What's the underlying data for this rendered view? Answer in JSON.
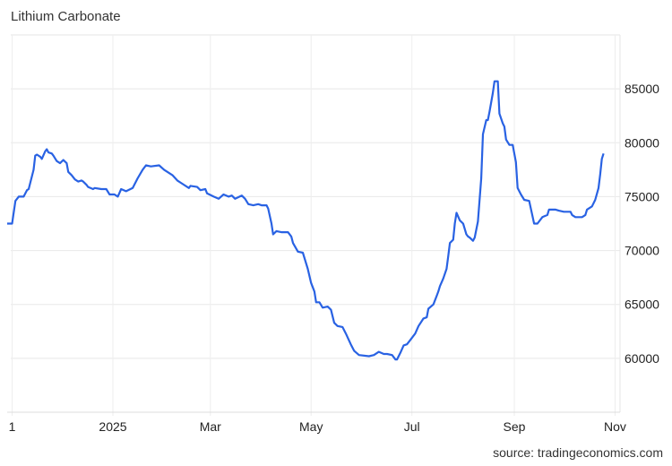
{
  "chart_data": {
    "type": "line",
    "title": "Lithium Carbonate",
    "source": "source: tradingeconomics.com",
    "xlabel": "",
    "ylabel": "",
    "xlim": [
      "2024-10-29",
      "2025-11-04"
    ],
    "ylim": [
      55000,
      90000
    ],
    "grid": true,
    "line_color": "#2962e3",
    "x_ticks": [
      {
        "date": "2024-11-01",
        "label": "1"
      },
      {
        "date": "2025-01-01",
        "label": "2025"
      },
      {
        "date": "2025-03-01",
        "label": "Mar"
      },
      {
        "date": "2025-05-01",
        "label": "May"
      },
      {
        "date": "2025-07-01",
        "label": "Jul"
      },
      {
        "date": "2025-09-01",
        "label": "Sep"
      },
      {
        "date": "2025-11-01",
        "label": "Nov"
      }
    ],
    "y_ticks": [
      {
        "value": 60000,
        "label": "60000"
      },
      {
        "value": 65000,
        "label": "65000"
      },
      {
        "value": 70000,
        "label": "70000"
      },
      {
        "value": 75000,
        "label": "75000"
      },
      {
        "value": 80000,
        "label": "80000"
      },
      {
        "value": 85000,
        "label": "85000"
      }
    ],
    "series": [
      {
        "points": [
          [
            "2024-10-29",
            72500
          ],
          [
            "2024-11-01",
            72500
          ],
          [
            "2024-11-03",
            74600
          ],
          [
            "2024-11-05",
            75000
          ],
          [
            "2024-11-08",
            75000
          ],
          [
            "2024-11-10",
            75600
          ],
          [
            "2024-11-11",
            75700
          ],
          [
            "2024-11-14",
            77500
          ],
          [
            "2024-11-15",
            78800
          ],
          [
            "2024-11-16",
            78900
          ],
          [
            "2024-11-18",
            78700
          ],
          [
            "2024-11-19",
            78500
          ],
          [
            "2024-11-21",
            79200
          ],
          [
            "2024-11-22",
            79400
          ],
          [
            "2024-11-23",
            79100
          ],
          [
            "2024-11-25",
            79000
          ],
          [
            "2024-11-26",
            78800
          ],
          [
            "2024-11-28",
            78300
          ],
          [
            "2024-11-30",
            78100
          ],
          [
            "2024-12-02",
            78400
          ],
          [
            "2024-12-04",
            78100
          ],
          [
            "2024-12-05",
            77300
          ],
          [
            "2024-12-07",
            77000
          ],
          [
            "2024-12-09",
            76600
          ],
          [
            "2024-12-11",
            76400
          ],
          [
            "2024-12-13",
            76500
          ],
          [
            "2024-12-14",
            76400
          ],
          [
            "2024-12-16",
            76100
          ],
          [
            "2024-12-17",
            75900
          ],
          [
            "2024-12-20",
            75700
          ],
          [
            "2024-12-21",
            75800
          ],
          [
            "2024-12-25",
            75700
          ],
          [
            "2024-12-28",
            75700
          ],
          [
            "2024-12-30",
            75200
          ],
          [
            "2025-01-02",
            75200
          ],
          [
            "2025-01-04",
            75000
          ],
          [
            "2025-01-06",
            75700
          ],
          [
            "2025-01-09",
            75500
          ],
          [
            "2025-01-13",
            75800
          ],
          [
            "2025-01-16",
            76700
          ],
          [
            "2025-01-19",
            77500
          ],
          [
            "2025-01-21",
            77900
          ],
          [
            "2025-01-24",
            77800
          ],
          [
            "2025-01-29",
            77900
          ],
          [
            "2025-02-01",
            77500
          ],
          [
            "2025-02-03",
            77300
          ],
          [
            "2025-02-06",
            77000
          ],
          [
            "2025-02-09",
            76500
          ],
          [
            "2025-02-12",
            76200
          ],
          [
            "2025-02-16",
            75800
          ],
          [
            "2025-02-17",
            76000
          ],
          [
            "2025-02-21",
            75900
          ],
          [
            "2025-02-23",
            75600
          ],
          [
            "2025-02-26",
            75700
          ],
          [
            "2025-02-27",
            75300
          ],
          [
            "2025-03-03",
            75000
          ],
          [
            "2025-03-06",
            74800
          ],
          [
            "2025-03-09",
            75200
          ],
          [
            "2025-03-12",
            75000
          ],
          [
            "2025-03-14",
            75100
          ],
          [
            "2025-03-16",
            74800
          ],
          [
            "2025-03-20",
            75100
          ],
          [
            "2025-03-22",
            74800
          ],
          [
            "2025-03-24",
            74300
          ],
          [
            "2025-03-27",
            74200
          ],
          [
            "2025-03-30",
            74300
          ],
          [
            "2025-04-01",
            74200
          ],
          [
            "2025-04-04",
            74200
          ],
          [
            "2025-04-05",
            73900
          ],
          [
            "2025-04-07",
            72500
          ],
          [
            "2025-04-08",
            71500
          ],
          [
            "2025-04-10",
            71800
          ],
          [
            "2025-04-13",
            71700
          ],
          [
            "2025-04-17",
            71700
          ],
          [
            "2025-04-19",
            71300
          ],
          [
            "2025-04-20",
            70700
          ],
          [
            "2025-04-23",
            69900
          ],
          [
            "2025-04-26",
            69800
          ],
          [
            "2025-04-29",
            68300
          ],
          [
            "2025-05-01",
            67000
          ],
          [
            "2025-05-03",
            66200
          ],
          [
            "2025-05-04",
            65200
          ],
          [
            "2025-05-06",
            65200
          ],
          [
            "2025-05-08",
            64700
          ],
          [
            "2025-05-11",
            64800
          ],
          [
            "2025-05-13",
            64500
          ],
          [
            "2025-05-15",
            63300
          ],
          [
            "2025-05-17",
            63000
          ],
          [
            "2025-05-20",
            62900
          ],
          [
            "2025-05-22",
            62300
          ],
          [
            "2025-05-25",
            61300
          ],
          [
            "2025-05-27",
            60700
          ],
          [
            "2025-05-30",
            60300
          ],
          [
            "2025-06-05",
            60200
          ],
          [
            "2025-06-08",
            60300
          ],
          [
            "2025-06-11",
            60600
          ],
          [
            "2025-06-14",
            60400
          ],
          [
            "2025-06-16",
            60400
          ],
          [
            "2025-06-19",
            60300
          ],
          [
            "2025-06-21",
            59900
          ],
          [
            "2025-06-22",
            59900
          ],
          [
            "2025-06-24",
            60500
          ],
          [
            "2025-06-26",
            61200
          ],
          [
            "2025-06-28",
            61300
          ],
          [
            "2025-06-30",
            61700
          ],
          [
            "2025-07-03",
            62300
          ],
          [
            "2025-07-05",
            63000
          ],
          [
            "2025-07-08",
            63700
          ],
          [
            "2025-07-10",
            63800
          ],
          [
            "2025-07-11",
            64600
          ],
          [
            "2025-07-14",
            65000
          ],
          [
            "2025-07-16",
            65800
          ],
          [
            "2025-07-17",
            66200
          ],
          [
            "2025-07-18",
            66700
          ],
          [
            "2025-07-20",
            67400
          ],
          [
            "2025-07-22",
            68300
          ],
          [
            "2025-07-23",
            69500
          ],
          [
            "2025-07-24",
            70700
          ],
          [
            "2025-07-26",
            71000
          ],
          [
            "2025-07-27",
            72500
          ],
          [
            "2025-07-28",
            73500
          ],
          [
            "2025-07-30",
            72800
          ],
          [
            "2025-08-01",
            72500
          ],
          [
            "2025-08-03",
            71500
          ],
          [
            "2025-08-04",
            71300
          ],
          [
            "2025-08-05",
            71200
          ],
          [
            "2025-08-07",
            70900
          ],
          [
            "2025-08-08",
            71200
          ],
          [
            "2025-08-10",
            72700
          ],
          [
            "2025-08-12",
            76700
          ],
          [
            "2025-08-13",
            80800
          ],
          [
            "2025-08-15",
            82100
          ],
          [
            "2025-08-16",
            82100
          ],
          [
            "2025-08-17",
            82900
          ],
          [
            "2025-08-19",
            84600
          ],
          [
            "2025-08-20",
            85700
          ],
          [
            "2025-08-22",
            85700
          ],
          [
            "2025-08-23",
            82700
          ],
          [
            "2025-08-25",
            81800
          ],
          [
            "2025-08-26",
            81500
          ],
          [
            "2025-08-27",
            80300
          ],
          [
            "2025-08-29",
            79800
          ],
          [
            "2025-08-31",
            79800
          ],
          [
            "2025-09-02",
            78200
          ],
          [
            "2025-09-03",
            75800
          ],
          [
            "2025-09-05",
            75200
          ],
          [
            "2025-09-07",
            74700
          ],
          [
            "2025-09-10",
            74600
          ],
          [
            "2025-09-12",
            73200
          ],
          [
            "2025-09-13",
            72500
          ],
          [
            "2025-09-15",
            72500
          ],
          [
            "2025-09-18",
            73100
          ],
          [
            "2025-09-21",
            73300
          ],
          [
            "2025-09-22",
            73800
          ],
          [
            "2025-09-26",
            73800
          ],
          [
            "2025-09-28",
            73700
          ],
          [
            "2025-10-01",
            73600
          ],
          [
            "2025-10-05",
            73600
          ],
          [
            "2025-10-06",
            73300
          ],
          [
            "2025-10-08",
            73100
          ],
          [
            "2025-10-12",
            73100
          ],
          [
            "2025-10-14",
            73300
          ],
          [
            "2025-10-15",
            73800
          ],
          [
            "2025-10-18",
            74100
          ],
          [
            "2025-10-20",
            74700
          ],
          [
            "2025-10-22",
            75800
          ],
          [
            "2025-10-23",
            77100
          ],
          [
            "2025-10-24",
            78500
          ],
          [
            "2025-10-25",
            79000
          ]
        ]
      }
    ]
  }
}
